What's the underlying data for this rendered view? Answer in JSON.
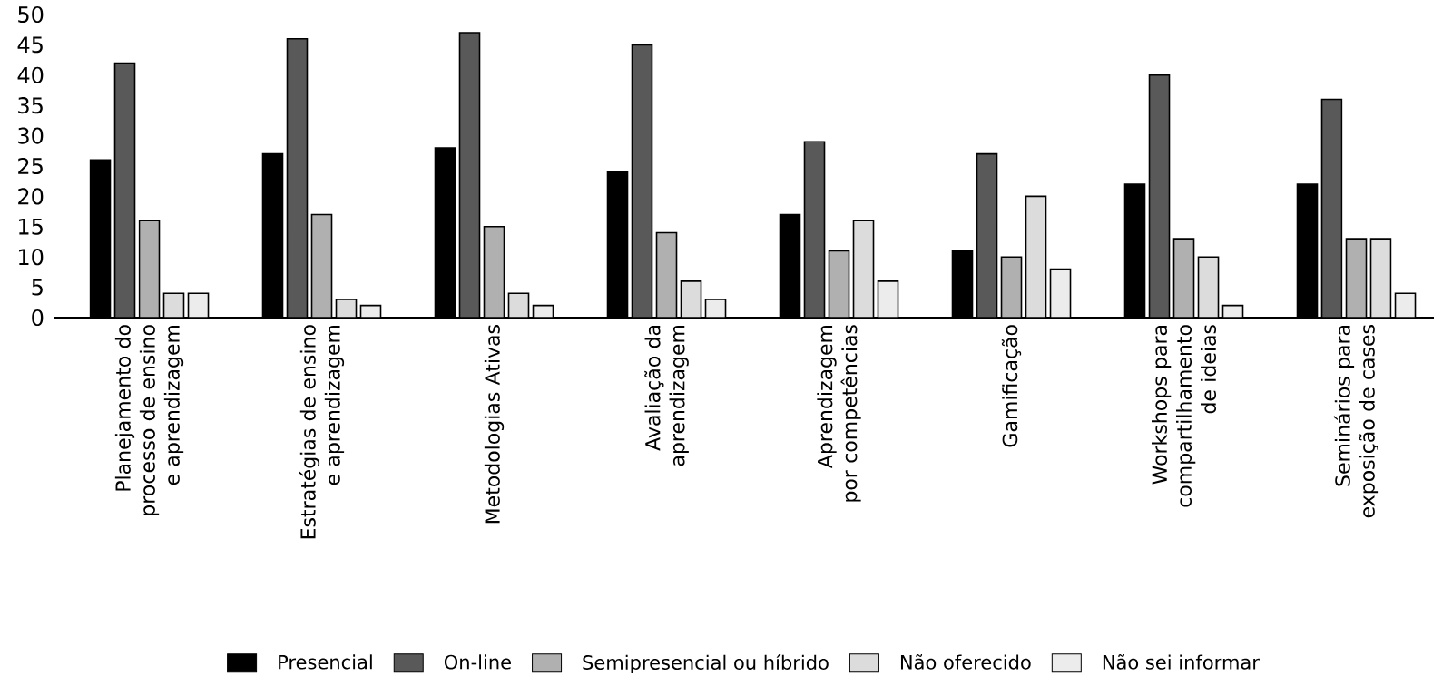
{
  "chart_data": {
    "type": "bar",
    "categories": [
      "Planejamento do processo de ensino e aprendizagem",
      "Estratégias de ensino e aprendizagem",
      "Metodologias Ativas",
      "Avaliação da aprendizagem",
      "Aprendizagem por competências",
      "Gamificação",
      "Workshops para compartilhamento de ideias",
      "Seminários para exposição de cases"
    ],
    "series": [
      {
        "name": "Presencial",
        "color": "#000000",
        "values": [
          26,
          27,
          28,
          24,
          17,
          11,
          22,
          22
        ]
      },
      {
        "name": "On-line",
        "color": "#595959",
        "values": [
          42,
          46,
          47,
          45,
          29,
          27,
          40,
          36
        ]
      },
      {
        "name": "Semipresencial ou híbrido",
        "color": "#b0b0b0",
        "values": [
          16,
          17,
          15,
          14,
          11,
          10,
          13,
          13
        ]
      },
      {
        "name": "Não oferecido",
        "color": "#dcdcdc",
        "values": [
          4,
          3,
          4,
          6,
          16,
          20,
          10,
          13
        ]
      },
      {
        "name": "Não sei informar",
        "color": "#ececec",
        "values": [
          4,
          2,
          2,
          3,
          6,
          8,
          2,
          4
        ]
      }
    ],
    "ylim": [
      0,
      50
    ],
    "yticks": [
      0,
      5,
      10,
      15,
      20,
      25,
      30,
      35,
      40,
      45,
      50
    ],
    "grid": false,
    "legend": "bottom"
  }
}
